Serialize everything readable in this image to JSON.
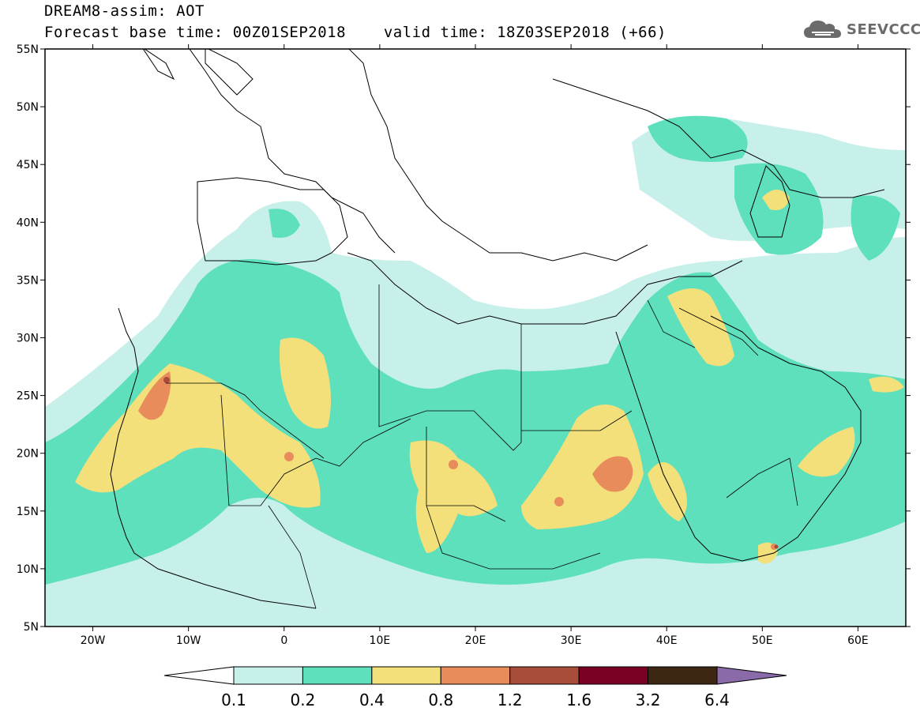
{
  "header": {
    "line1": "DREAM8-assim: AOT",
    "base_label": "Forecast base time: 00Z01SEP2018",
    "valid_label": "valid time: 18Z03SEP2018 (+66)"
  },
  "logo": {
    "text": "SEEVCCC",
    "icon": "cloud-logo-icon"
  },
  "map": {
    "lon_range": [
      -25,
      65
    ],
    "lat_range": [
      5,
      55
    ],
    "lat_ticks": [
      {
        "value": 55,
        "label": "55N"
      },
      {
        "value": 50,
        "label": "50N"
      },
      {
        "value": 45,
        "label": "45N"
      },
      {
        "value": 40,
        "label": "40N"
      },
      {
        "value": 35,
        "label": "35N"
      },
      {
        "value": 30,
        "label": "30N"
      },
      {
        "value": 25,
        "label": "25N"
      },
      {
        "value": 20,
        "label": "20N"
      },
      {
        "value": 15,
        "label": "15N"
      },
      {
        "value": 10,
        "label": "10N"
      },
      {
        "value": 5,
        "label": "5N"
      }
    ],
    "lon_ticks": [
      {
        "value": -20,
        "label": "20W"
      },
      {
        "value": -10,
        "label": "10W"
      },
      {
        "value": 0,
        "label": "0"
      },
      {
        "value": 10,
        "label": "10E"
      },
      {
        "value": 20,
        "label": "20E"
      },
      {
        "value": 30,
        "label": "30E"
      },
      {
        "value": 40,
        "label": "40E"
      },
      {
        "value": 50,
        "label": "50E"
      },
      {
        "value": 60,
        "label": "60E"
      }
    ]
  },
  "colorbar": {
    "levels": [
      "0.1",
      "0.2",
      "0.4",
      "0.8",
      "1.2",
      "1.6",
      "3.2",
      "6.4"
    ],
    "colors": [
      "#ffffff",
      "#c8f0ea",
      "#5ee0bd",
      "#f3e07a",
      "#e88c5c",
      "#a84d3a",
      "#7a0024",
      "#3d2612",
      "#8a6aa8"
    ]
  }
}
